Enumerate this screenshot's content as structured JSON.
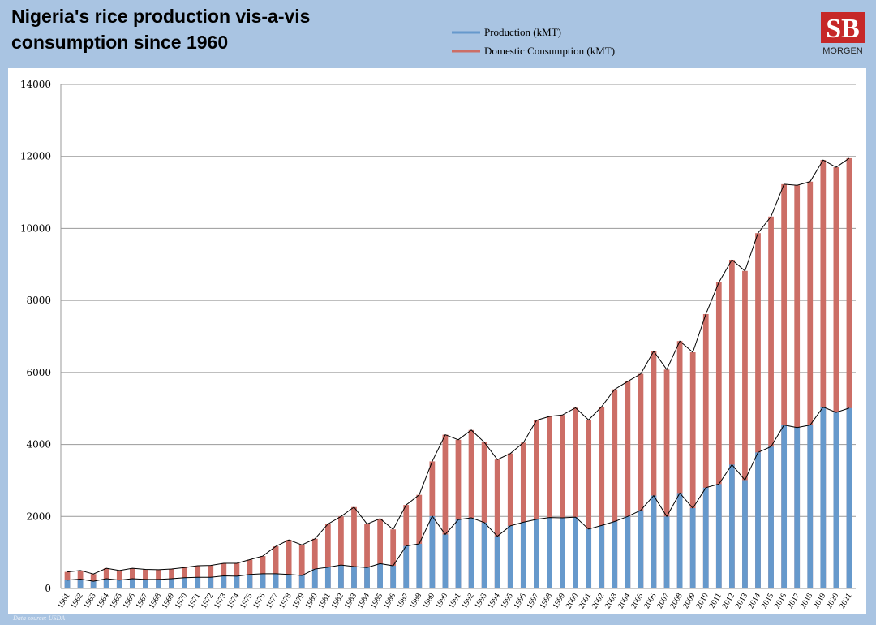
{
  "chart_data": {
    "type": "bar",
    "title": [
      "Nigeria's rice production vis-a-vis",
      "consumption since 1960"
    ],
    "logo": {
      "mark": "SB",
      "name": "MORGEN"
    },
    "source": "Data source: USDA",
    "categories": [
      "1961",
      "1962",
      "1963",
      "1964",
      "1965",
      "1966",
      "1967",
      "1968",
      "1969",
      "1970",
      "1971",
      "1972",
      "1973",
      "1974",
      "1975",
      "1976",
      "1977",
      "1978",
      "1979",
      "1980",
      "1981",
      "1982",
      "1983",
      "1984",
      "1985",
      "1986",
      "1987",
      "1988",
      "1989",
      "1990",
      "1991",
      "1992",
      "1993",
      "1994",
      "1995",
      "1996",
      "1997",
      "1998",
      "1999",
      "2000",
      "2001",
      "2002",
      "2003",
      "2004",
      "2005",
      "2006",
      "2007",
      "2008",
      "2009",
      "2010",
      "2011",
      "2012",
      "2013",
      "2014",
      "2015",
      "2016",
      "2017",
      "2018",
      "2019",
      "2020",
      "2021"
    ],
    "series": [
      {
        "name": "Production (kMT)",
        "color": "#6699cc",
        "values": [
          230,
          260,
          200,
          270,
          230,
          270,
          250,
          250,
          270,
          300,
          310,
          310,
          350,
          340,
          390,
          410,
          410,
          390,
          360,
          540,
          590,
          650,
          610,
          580,
          690,
          630,
          1180,
          1240,
          2010,
          1500,
          1910,
          1960,
          1830,
          1450,
          1740,
          1840,
          1920,
          1970,
          1960,
          1980,
          1650,
          1750,
          1860,
          2000,
          2170,
          2580,
          2000,
          2650,
          2230,
          2800,
          2900,
          3440,
          3010,
          3780,
          3940,
          4540,
          4470,
          4540,
          5040,
          4890,
          5010
        ]
      },
      {
        "name": "Domestic Consumption (kMT)",
        "color": "#cc6e66",
        "values": [
          460,
          500,
          400,
          560,
          500,
          560,
          530,
          520,
          540,
          580,
          630,
          640,
          700,
          700,
          800,
          900,
          1170,
          1350,
          1210,
          1380,
          1790,
          2000,
          2260,
          1790,
          1940,
          1640,
          2320,
          2600,
          3530,
          4270,
          4130,
          4400,
          4060,
          3580,
          3750,
          4050,
          4670,
          4780,
          4820,
          5020,
          4680,
          5050,
          5530,
          5750,
          5960,
          6590,
          6080,
          6870,
          6560,
          7620,
          8500,
          9130,
          8820,
          9870,
          10330,
          11230,
          11200,
          11300,
          11900,
          11700,
          11950
        ]
      }
    ],
    "ylim": [
      0,
      14000
    ],
    "yticks": [
      0,
      2000,
      4000,
      6000,
      8000,
      10000,
      12000,
      14000
    ],
    "grid": true
  }
}
